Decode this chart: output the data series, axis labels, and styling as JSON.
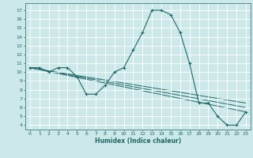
{
  "xlabel": "Humidex (Indice chaleur)",
  "bg_color": "#cde8e8",
  "line_color": "#1a6b6b",
  "grid_color": "#ffffff",
  "xlim": [
    -0.5,
    23.5
  ],
  "ylim": [
    3.5,
    17.8
  ],
  "xticks": [
    0,
    1,
    2,
    3,
    4,
    5,
    6,
    7,
    8,
    9,
    10,
    11,
    12,
    13,
    14,
    15,
    16,
    17,
    18,
    19,
    20,
    21,
    22,
    23
  ],
  "yticks": [
    4,
    5,
    6,
    7,
    8,
    9,
    10,
    11,
    12,
    13,
    14,
    15,
    16,
    17
  ],
  "series": [
    {
      "x": [
        0,
        1,
        2,
        3,
        4,
        5,
        6,
        7,
        8,
        9,
        10,
        11,
        12,
        13,
        14,
        15,
        16,
        17,
        18,
        19,
        20,
        21,
        22,
        23
      ],
      "y": [
        10.5,
        10.5,
        10.0,
        10.5,
        10.5,
        9.5,
        7.5,
        7.5,
        8.5,
        10.0,
        10.5,
        12.5,
        14.5,
        17.0,
        17.0,
        16.5,
        14.5,
        11.0,
        6.5,
        6.5,
        5.0,
        4.0,
        4.0,
        5.5
      ],
      "marker": "+"
    },
    {
      "x": [
        0,
        23
      ],
      "y": [
        10.5,
        6.5
      ],
      "marker": null
    },
    {
      "x": [
        0,
        23
      ],
      "y": [
        10.5,
        6.0
      ],
      "marker": null
    },
    {
      "x": [
        0,
        23
      ],
      "y": [
        10.5,
        5.5
      ],
      "marker": null
    }
  ]
}
